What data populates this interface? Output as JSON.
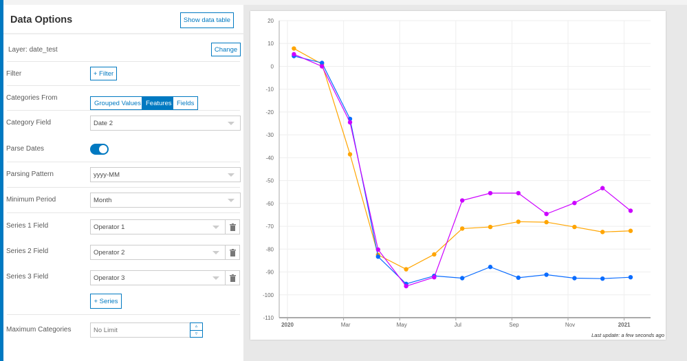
{
  "panel": {
    "title": "Data Options",
    "show_table": "Show data table",
    "layer": "Layer: date_test",
    "change": "Change",
    "filter_label": "Filter",
    "filter_btn": "+ Filter",
    "cat_from_label": "Categories From",
    "cat_from_opts": [
      "Grouped Values",
      "Features",
      "Fields"
    ],
    "cat_from_selected": "Features",
    "cat_field_label": "Category Field",
    "cat_field": "Date 2",
    "parse_label": "Parse Dates",
    "parse_on": true,
    "pattern_label": "Parsing Pattern",
    "pattern": "yyyy-MM",
    "period_label": "Minimum Period",
    "period": "Month",
    "series": [
      {
        "label": "Series 1 Field",
        "value": "Operator 1"
      },
      {
        "label": "Series 2 Field",
        "value": "Operator 2"
      },
      {
        "label": "Series 3 Field",
        "value": "Operator 3"
      }
    ],
    "add_series": "+ Series",
    "maxcat_label": "Maximum Categories",
    "maxcat_placeholder": "No Limit"
  },
  "colors": {
    "accent": "#0079c1"
  },
  "chart_data": {
    "type": "line",
    "title": "",
    "xlabel": "",
    "ylabel": "",
    "x": [
      "2020-01",
      "2020-02",
      "2020-03",
      "2020-04",
      "2020-05",
      "2020-06",
      "2020-07",
      "2020-08",
      "2020-09",
      "2020-10",
      "2020-11",
      "2020-12",
      "2021-01"
    ],
    "x_ticks": [
      "2020",
      "Mar",
      "May",
      "Jul",
      "Sep",
      "Nov",
      "2021"
    ],
    "y_ticks": [
      20,
      10,
      0,
      -10,
      -20,
      -30,
      -40,
      -50,
      -60,
      -70,
      -80,
      -90,
      -100,
      -110
    ],
    "ylim": [
      -110,
      20
    ],
    "grid": true,
    "series": [
      {
        "name": "Operator 1",
        "color": "#ffa500",
        "values": [
          7.8,
          1,
          -38.5,
          -82.5,
          -88.8,
          -82.3,
          -71,
          -70.3,
          -68,
          -68.2,
          -70.3,
          -72.5,
          -72
        ]
      },
      {
        "name": "Operator 2",
        "color": "#0a6cff",
        "values": [
          4.5,
          1.5,
          -23,
          -83.3,
          -95.2,
          -91.7,
          -92.7,
          -87.8,
          -92.5,
          -91.2,
          -92.7,
          -92.9,
          -92.3
        ]
      },
      {
        "name": "Operator 3",
        "color": "#cc00ff",
        "values": [
          5.3,
          0,
          -24.5,
          -80.2,
          -96.2,
          -92.3,
          -58.7,
          -55.5,
          -55.5,
          -64.6,
          -59.8,
          -53.3,
          -63.2
        ]
      }
    ],
    "footer": "Last update: a few seconds ago"
  }
}
